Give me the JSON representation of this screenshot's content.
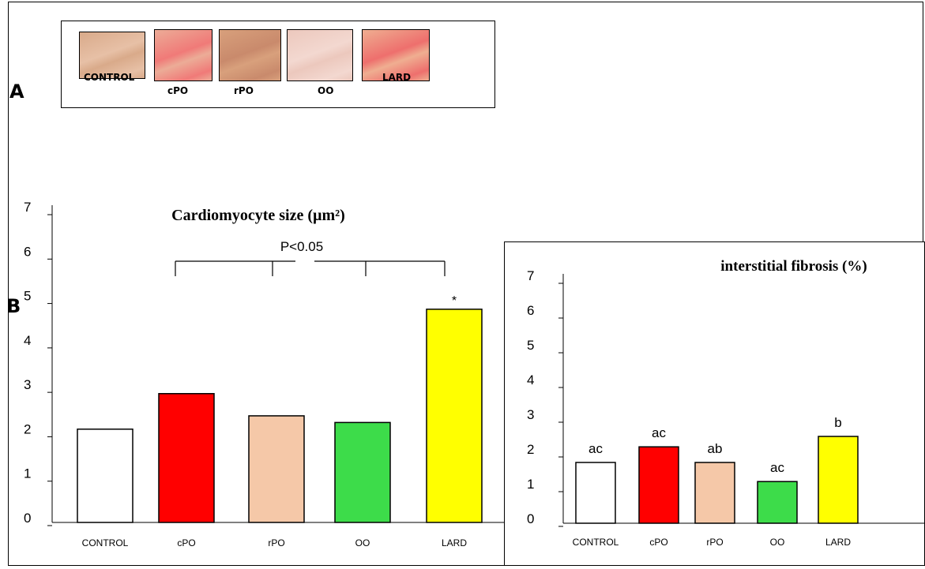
{
  "panels": {
    "a_label": "A",
    "b_label": "B"
  },
  "micrographs": [
    {
      "label": "CONTROL",
      "color": "#d9aa8a",
      "streak": "#e7c0a6"
    },
    {
      "label": "cPO",
      "color": "#ecac97",
      "streak": "#f07a78"
    },
    {
      "label": "rPO",
      "color": "#d8a07c",
      "streak": "#c98a6c"
    },
    {
      "label": "OO",
      "color": "#ecc8bd",
      "streak": "#f3d8d0"
    },
    {
      "label": "LARD",
      "color": "#efae91",
      "streak": "#ee6f6d"
    }
  ],
  "chart_data": [
    {
      "type": "bar",
      "title": "Cardiomyocyte size (µm²)",
      "categories": [
        "CONTROL",
        "cPO",
        "rPO",
        "OO",
        "LARD"
      ],
      "values": [
        2.1,
        2.9,
        2.4,
        2.25,
        4.8
      ],
      "colors": [
        "#ffffff",
        "#ff0000",
        "#f5c8a8",
        "#3ddc4a",
        "#ffff00"
      ],
      "yticks": [
        "0",
        "1",
        "2",
        "3",
        "4",
        "5",
        "6",
        "7"
      ],
      "ylim": [
        0,
        7
      ],
      "significance": {
        "label": "P<0.05"
      },
      "bar_annotations": [
        "",
        "",
        "",
        "",
        "*"
      ]
    },
    {
      "type": "bar",
      "title": "interstitial fibrosis (%)",
      "categories": [
        "CONTROL",
        "cPO",
        "rPO",
        "OO",
        "LARD"
      ],
      "values": [
        1.75,
        2.2,
        1.75,
        1.2,
        2.5
      ],
      "colors": [
        "#ffffff",
        "#ff0000",
        "#f5c8a8",
        "#3ddc4a",
        "#ffff00"
      ],
      "yticks": [
        "0",
        "1",
        "2",
        "3",
        "4",
        "5",
        "6",
        "7"
      ],
      "ylim": [
        0,
        7
      ],
      "bar_annotations": [
        "ac",
        "ac",
        "ab",
        "ac",
        "b"
      ]
    }
  ]
}
